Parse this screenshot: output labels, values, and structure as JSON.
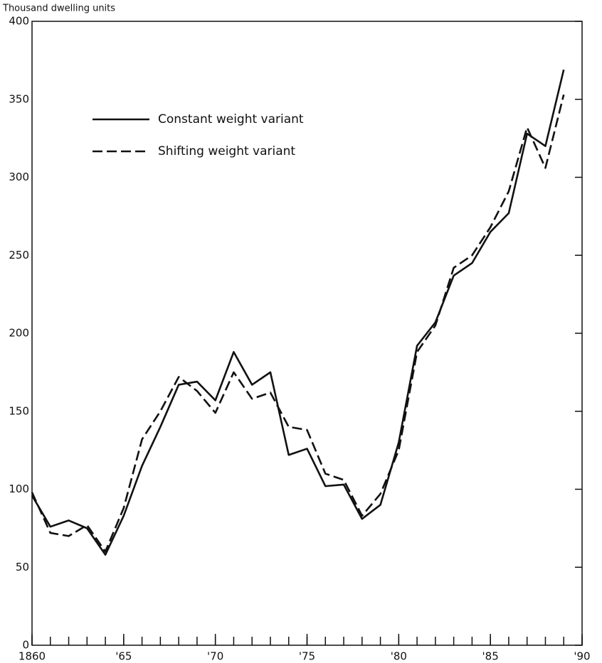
{
  "chart_data": {
    "type": "line",
    "y_label": "Thousand dwelling units",
    "x": [
      1860,
      1861,
      1862,
      1863,
      1864,
      1865,
      1866,
      1867,
      1868,
      1869,
      1870,
      1871,
      1872,
      1873,
      1874,
      1875,
      1876,
      1877,
      1878,
      1879,
      1880,
      1881,
      1882,
      1883,
      1884,
      1885,
      1886,
      1887,
      1888,
      1889
    ],
    "series": [
      {
        "name": "Constant weight variant",
        "color": "#111111",
        "dash": false,
        "values": [
          96,
          76,
          80,
          75,
          58,
          83,
          115,
          140,
          167,
          169,
          157,
          188,
          167,
          175,
          122,
          126,
          102,
          103,
          81,
          90,
          130,
          192,
          207,
          237,
          245,
          265,
          277,
          328,
          320,
          369
        ]
      },
      {
        "name": "Shifting weight variant",
        "color": "#111111",
        "dash": true,
        "values": [
          98,
          72,
          70,
          77,
          60,
          88,
          132,
          150,
          172,
          163,
          149,
          175,
          158,
          162,
          140,
          138,
          110,
          106,
          83,
          97,
          125,
          188,
          205,
          242,
          250,
          268,
          291,
          332,
          306,
          353
        ]
      }
    ],
    "xlim": [
      1860,
      1890
    ],
    "xticks": [
      1860,
      {
        "value": 1865,
        "label": "'65"
      },
      {
        "value": 1870,
        "label": "'70"
      },
      {
        "value": 1875,
        "label": "'75"
      },
      {
        "value": 1880,
        "label": "'80"
      },
      {
        "value": 1885,
        "label": "'85"
      },
      {
        "value": 1890,
        "label": "'90"
      }
    ],
    "ylim": [
      0,
      400
    ],
    "yticks": [
      0,
      50,
      100,
      150,
      200,
      250,
      300,
      350,
      400
    ],
    "grid": false
  }
}
